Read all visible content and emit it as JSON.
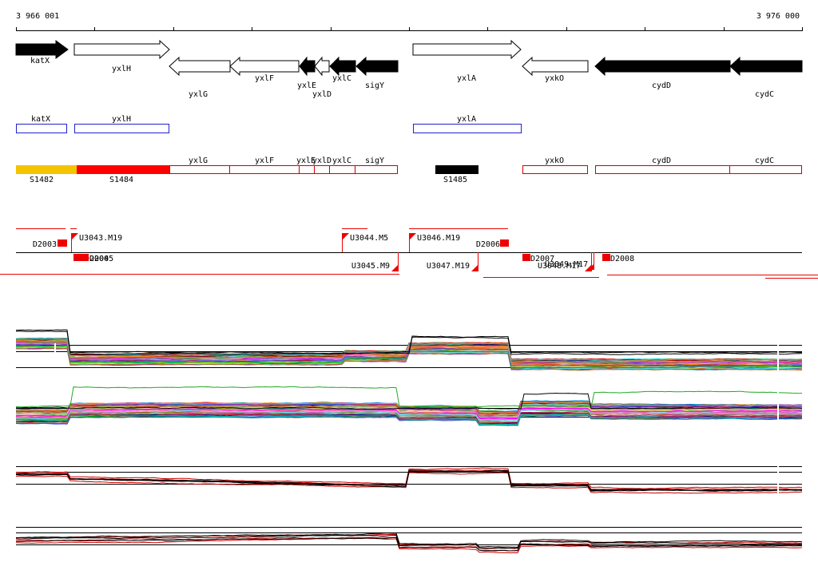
{
  "ruler": {
    "start_label": "3 966 001",
    "end_label": "3 976 000"
  },
  "colors": {
    "gene_fill": "#000000",
    "cds_box": "#2222cc",
    "operon_box": "#cc0000",
    "segment_orange": "#f5c400",
    "segment_red": "#ff0000",
    "segment_black": "#000000",
    "feature_red": "#ee0000"
  },
  "genes": [
    {
      "name": "katX",
      "strand": "+",
      "filled": true
    },
    {
      "name": "yxlH",
      "strand": "+",
      "filled": false
    },
    {
      "name": "yxlG",
      "strand": "-",
      "filled": false
    },
    {
      "name": "yxlF",
      "strand": "-",
      "filled": false
    },
    {
      "name": "yxlE",
      "strand": "-",
      "filled": true
    },
    {
      "name": "yxlD",
      "strand": "-",
      "filled": false
    },
    {
      "name": "yxlC",
      "strand": "-",
      "filled": true
    },
    {
      "name": "sigY",
      "strand": "-",
      "filled": true
    },
    {
      "name": "yxlA",
      "strand": "+",
      "filled": false
    },
    {
      "name": "yxkO",
      "strand": "-",
      "filled": false
    },
    {
      "name": "cydD",
      "strand": "-",
      "filled": true
    },
    {
      "name": "cydC",
      "strand": "-",
      "filled": true
    }
  ],
  "blue_boxes": [
    {
      "label": "katX"
    },
    {
      "label": "yxlH"
    },
    {
      "label": "yxlA"
    }
  ],
  "red_boxes": [
    {
      "label": "yxlG"
    },
    {
      "label": "yxlF"
    },
    {
      "label": "yxlE"
    },
    {
      "label": "yxlD"
    },
    {
      "label": "yxlC"
    },
    {
      "label": "sigY"
    },
    {
      "label": "yxkO"
    },
    {
      "label": "cydD"
    },
    {
      "label": "cydC"
    }
  ],
  "segments": [
    {
      "label": "S1482",
      "color": "orange"
    },
    {
      "label": "S1484",
      "color": "red"
    },
    {
      "label": "S1485",
      "color": "black"
    }
  ],
  "features_upper": [
    {
      "label": "D2003"
    },
    {
      "label": "U3043.M19"
    },
    {
      "label": "U3044.M5"
    },
    {
      "label": "U3046.M19"
    },
    {
      "label": "D2006"
    }
  ],
  "features_lower": [
    {
      "label": "D2004"
    },
    {
      "label": "D2005"
    },
    {
      "label": "U3045.M9"
    },
    {
      "label": "U3047.M19"
    },
    {
      "label": "D2007"
    },
    {
      "label": "U3048.M17"
    },
    {
      "label": "U3049.M17"
    },
    {
      "label": "D2008"
    }
  ]
}
